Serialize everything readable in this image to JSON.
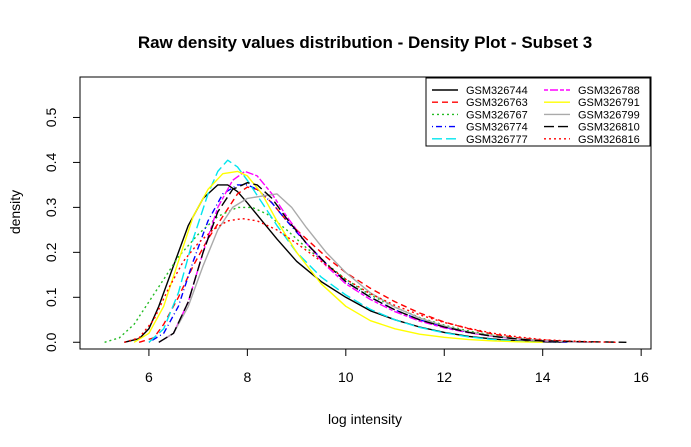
{
  "chart_data": {
    "type": "line",
    "title": "Raw density values distribution - Density Plot - Subset 3",
    "xlabel": "log intensity",
    "ylabel": "density",
    "xlim": [
      4.6,
      16.2
    ],
    "ylim": [
      -0.015,
      0.59
    ],
    "xticks": [
      6,
      8,
      10,
      12,
      14,
      16
    ],
    "yticks": [
      0.0,
      0.1,
      0.2,
      0.3,
      0.4,
      0.5
    ],
    "legend_position": "top-right",
    "series": [
      {
        "name": "GSM326744",
        "color": "#000000",
        "dash": "solid",
        "points": [
          [
            5.5,
            0.0
          ],
          [
            5.8,
            0.008
          ],
          [
            6.0,
            0.03
          ],
          [
            6.2,
            0.08
          ],
          [
            6.5,
            0.17
          ],
          [
            6.8,
            0.26
          ],
          [
            7.1,
            0.32
          ],
          [
            7.4,
            0.35
          ],
          [
            7.6,
            0.35
          ],
          [
            7.8,
            0.335
          ],
          [
            8.0,
            0.31
          ],
          [
            8.3,
            0.27
          ],
          [
            8.6,
            0.23
          ],
          [
            9.0,
            0.18
          ],
          [
            9.5,
            0.135
          ],
          [
            10.0,
            0.1
          ],
          [
            10.5,
            0.07
          ],
          [
            11.0,
            0.05
          ],
          [
            11.5,
            0.034
          ],
          [
            12.0,
            0.022
          ],
          [
            12.5,
            0.013
          ],
          [
            13.0,
            0.007
          ],
          [
            13.5,
            0.003
          ],
          [
            14.0,
            0.001
          ],
          [
            14.5,
            0.0
          ]
        ]
      },
      {
        "name": "GSM326763",
        "color": "#ff0000",
        "dash": "dashed",
        "points": [
          [
            5.8,
            0.0
          ],
          [
            6.1,
            0.01
          ],
          [
            6.3,
            0.04
          ],
          [
            6.6,
            0.1
          ],
          [
            6.9,
            0.17
          ],
          [
            7.2,
            0.23
          ],
          [
            7.5,
            0.28
          ],
          [
            7.8,
            0.33
          ],
          [
            8.0,
            0.345
          ],
          [
            8.2,
            0.34
          ],
          [
            8.5,
            0.31
          ],
          [
            8.8,
            0.27
          ],
          [
            9.2,
            0.23
          ],
          [
            9.6,
            0.19
          ],
          [
            10.0,
            0.155
          ],
          [
            10.5,
            0.12
          ],
          [
            11.0,
            0.09
          ],
          [
            11.5,
            0.065
          ],
          [
            12.0,
            0.045
          ],
          [
            12.5,
            0.03
          ],
          [
            13.0,
            0.018
          ],
          [
            13.5,
            0.01
          ],
          [
            14.0,
            0.005
          ],
          [
            14.5,
            0.002
          ],
          [
            15.0,
            0.0
          ]
        ]
      },
      {
        "name": "GSM326767",
        "color": "#22bb22",
        "dash": "dotted",
        "points": [
          [
            5.1,
            0.0
          ],
          [
            5.4,
            0.01
          ],
          [
            5.7,
            0.04
          ],
          [
            6.0,
            0.09
          ],
          [
            6.3,
            0.14
          ],
          [
            6.6,
            0.19
          ],
          [
            7.0,
            0.24
          ],
          [
            7.4,
            0.28
          ],
          [
            7.8,
            0.3
          ],
          [
            8.1,
            0.3
          ],
          [
            8.4,
            0.285
          ],
          [
            8.8,
            0.25
          ],
          [
            9.2,
            0.21
          ],
          [
            9.6,
            0.175
          ],
          [
            10.0,
            0.14
          ],
          [
            10.5,
            0.105
          ],
          [
            11.0,
            0.078
          ],
          [
            11.5,
            0.055
          ],
          [
            12.0,
            0.038
          ],
          [
            12.5,
            0.025
          ],
          [
            13.0,
            0.015
          ],
          [
            13.5,
            0.008
          ],
          [
            14.0,
            0.003
          ],
          [
            14.5,
            0.0
          ]
        ]
      },
      {
        "name": "GSM326774",
        "color": "#0000ff",
        "dash": "dashdot",
        "points": [
          [
            6.0,
            0.0
          ],
          [
            6.3,
            0.02
          ],
          [
            6.6,
            0.08
          ],
          [
            6.9,
            0.18
          ],
          [
            7.2,
            0.27
          ],
          [
            7.5,
            0.33
          ],
          [
            7.8,
            0.35
          ],
          [
            8.0,
            0.35
          ],
          [
            8.2,
            0.34
          ],
          [
            8.5,
            0.31
          ],
          [
            8.8,
            0.27
          ],
          [
            9.2,
            0.22
          ],
          [
            9.6,
            0.175
          ],
          [
            10.0,
            0.135
          ],
          [
            10.5,
            0.1
          ],
          [
            11.0,
            0.072
          ],
          [
            11.5,
            0.05
          ],
          [
            12.0,
            0.034
          ],
          [
            12.5,
            0.022
          ],
          [
            13.0,
            0.013
          ],
          [
            13.5,
            0.007
          ],
          [
            14.0,
            0.003
          ],
          [
            14.5,
            0.0
          ]
        ]
      },
      {
        "name": "GSM326777",
        "color": "#00e5ee",
        "dash": "longdash",
        "points": [
          [
            6.0,
            0.0
          ],
          [
            6.3,
            0.03
          ],
          [
            6.6,
            0.11
          ],
          [
            6.9,
            0.23
          ],
          [
            7.2,
            0.33
          ],
          [
            7.4,
            0.38
          ],
          [
            7.6,
            0.405
          ],
          [
            7.8,
            0.39
          ],
          [
            8.0,
            0.36
          ],
          [
            8.3,
            0.31
          ],
          [
            8.6,
            0.26
          ],
          [
            9.0,
            0.2
          ],
          [
            9.5,
            0.145
          ],
          [
            10.0,
            0.105
          ],
          [
            10.5,
            0.073
          ],
          [
            11.0,
            0.05
          ],
          [
            11.5,
            0.033
          ],
          [
            12.0,
            0.021
          ],
          [
            12.5,
            0.012
          ],
          [
            13.0,
            0.006
          ],
          [
            13.5,
            0.002
          ],
          [
            14.0,
            0.0
          ]
        ]
      },
      {
        "name": "GSM326788",
        "color": "#ff00ff",
        "dash": "twodash",
        "points": [
          [
            6.2,
            0.0
          ],
          [
            6.5,
            0.02
          ],
          [
            6.8,
            0.09
          ],
          [
            7.1,
            0.2
          ],
          [
            7.4,
            0.3
          ],
          [
            7.7,
            0.36
          ],
          [
            7.95,
            0.38
          ],
          [
            8.2,
            0.37
          ],
          [
            8.5,
            0.33
          ],
          [
            8.8,
            0.28
          ],
          [
            9.2,
            0.22
          ],
          [
            9.6,
            0.17
          ],
          [
            10.0,
            0.13
          ],
          [
            10.5,
            0.095
          ],
          [
            11.0,
            0.068
          ],
          [
            11.5,
            0.047
          ],
          [
            12.0,
            0.032
          ],
          [
            12.5,
            0.021
          ],
          [
            13.0,
            0.013
          ],
          [
            13.5,
            0.007
          ],
          [
            14.0,
            0.003
          ],
          [
            14.5,
            0.001
          ],
          [
            15.0,
            0.0
          ]
        ]
      },
      {
        "name": "GSM326791",
        "color": "#ffff00",
        "dash": "solid",
        "points": [
          [
            5.7,
            0.0
          ],
          [
            6.0,
            0.02
          ],
          [
            6.3,
            0.08
          ],
          [
            6.6,
            0.18
          ],
          [
            6.9,
            0.28
          ],
          [
            7.2,
            0.34
          ],
          [
            7.5,
            0.375
          ],
          [
            7.8,
            0.38
          ],
          [
            8.0,
            0.37
          ],
          [
            8.3,
            0.33
          ],
          [
            8.6,
            0.27
          ],
          [
            9.0,
            0.2
          ],
          [
            9.5,
            0.13
          ],
          [
            10.0,
            0.08
          ],
          [
            10.5,
            0.048
          ],
          [
            11.0,
            0.03
          ],
          [
            11.5,
            0.018
          ],
          [
            12.0,
            0.011
          ],
          [
            12.5,
            0.006
          ],
          [
            13.0,
            0.003
          ],
          [
            13.5,
            0.001
          ],
          [
            14.0,
            0.0
          ]
        ]
      },
      {
        "name": "GSM326799",
        "color": "#aaaaaa",
        "dash": "solid",
        "points": [
          [
            6.2,
            0.0
          ],
          [
            6.5,
            0.02
          ],
          [
            6.8,
            0.08
          ],
          [
            7.1,
            0.17
          ],
          [
            7.4,
            0.25
          ],
          [
            7.7,
            0.3
          ],
          [
            8.0,
            0.32
          ],
          [
            8.3,
            0.325
          ],
          [
            8.6,
            0.33
          ],
          [
            8.9,
            0.3
          ],
          [
            9.2,
            0.255
          ],
          [
            9.6,
            0.2
          ],
          [
            10.0,
            0.155
          ],
          [
            10.5,
            0.11
          ],
          [
            11.0,
            0.078
          ],
          [
            11.5,
            0.054
          ],
          [
            12.0,
            0.036
          ],
          [
            12.5,
            0.023
          ],
          [
            13.0,
            0.014
          ],
          [
            13.5,
            0.008
          ],
          [
            14.0,
            0.004
          ],
          [
            14.5,
            0.001
          ],
          [
            15.0,
            0.0
          ]
        ]
      },
      {
        "name": "GSM326810",
        "color": "#000000",
        "dash": "longdash",
        "points": [
          [
            6.2,
            0.0
          ],
          [
            6.5,
            0.02
          ],
          [
            6.8,
            0.09
          ],
          [
            7.1,
            0.2
          ],
          [
            7.4,
            0.29
          ],
          [
            7.7,
            0.34
          ],
          [
            8.0,
            0.355
          ],
          [
            8.2,
            0.35
          ],
          [
            8.5,
            0.32
          ],
          [
            8.8,
            0.275
          ],
          [
            9.2,
            0.22
          ],
          [
            9.6,
            0.175
          ],
          [
            10.0,
            0.135
          ],
          [
            10.5,
            0.1
          ],
          [
            11.0,
            0.072
          ],
          [
            11.5,
            0.05
          ],
          [
            12.0,
            0.034
          ],
          [
            12.5,
            0.022
          ],
          [
            13.0,
            0.013
          ],
          [
            13.5,
            0.007
          ],
          [
            14.0,
            0.003
          ],
          [
            15.0,
            0.001
          ],
          [
            15.7,
            0.0
          ]
        ]
      },
      {
        "name": "GSM326816",
        "color": "#ff0000",
        "dash": "dotted",
        "points": [
          [
            5.5,
            0.0
          ],
          [
            5.8,
            0.01
          ],
          [
            6.1,
            0.05
          ],
          [
            6.4,
            0.12
          ],
          [
            6.7,
            0.18
          ],
          [
            7.0,
            0.22
          ],
          [
            7.3,
            0.25
          ],
          [
            7.6,
            0.27
          ],
          [
            7.9,
            0.275
          ],
          [
            8.2,
            0.27
          ],
          [
            8.6,
            0.25
          ],
          [
            9.0,
            0.22
          ],
          [
            9.5,
            0.18
          ],
          [
            10.0,
            0.14
          ],
          [
            10.5,
            0.108
          ],
          [
            11.0,
            0.082
          ],
          [
            11.5,
            0.061
          ],
          [
            12.0,
            0.044
          ],
          [
            12.5,
            0.031
          ],
          [
            13.0,
            0.02
          ],
          [
            13.5,
            0.012
          ],
          [
            14.0,
            0.006
          ],
          [
            14.5,
            0.003
          ],
          [
            15.0,
            0.001
          ],
          [
            15.5,
            0.0
          ]
        ]
      }
    ]
  }
}
